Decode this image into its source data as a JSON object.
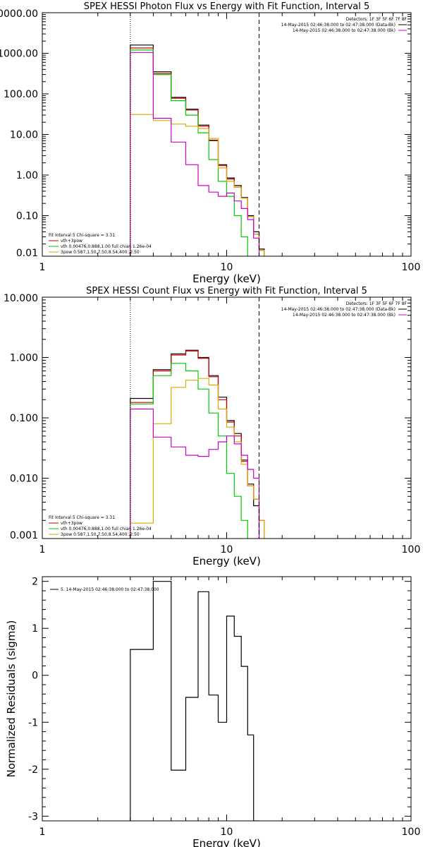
{
  "chart_data": [
    {
      "type": "line",
      "title": "SPEX HESSI Photon Flux vs Energy with Fit Function, Interval 5",
      "xlabel": "Energy (keV)",
      "ylabel": "",
      "xscale": "log",
      "yscale": "log",
      "xlim": [
        1,
        100
      ],
      "ylim": [
        0.01,
        10000
      ],
      "x_tick_labels": [
        "1",
        "10",
        "100"
      ],
      "y_tick_labels": [
        "0.01",
        "0.10",
        "1.00",
        "10.00",
        "100.00",
        "1000.00",
        "10000.00"
      ],
      "y_tick_values": [
        0.01,
        0.1,
        1,
        10,
        100,
        1000,
        10000
      ],
      "vlines": [
        {
          "x": 3.0,
          "style": "dotted"
        },
        {
          "x": 15.0,
          "style": "dashed"
        }
      ],
      "legend_right": {
        "header": "Detectors: 1F 3F 5F 6F 7F 8F",
        "entries": [
          {
            "text": "14-May-2015 02:46:38.000 to 02:47:38.000 (Data-Bk)",
            "color": "#000000"
          },
          {
            "text": "14-May-2015 02:46:38.000 to 02:47:38.000 (Bk)",
            "color": "#cc00cc"
          }
        ]
      },
      "legend_left": {
        "header": "Fit Interval 5   Chi-square = 3.31",
        "entries": [
          {
            "text": "vth+3pow",
            "color": "#cc0000"
          },
          {
            "text": "vth 0.00476,0.888,1.00  full chian 1.26e-04",
            "color": "#00cc00"
          },
          {
            "text": "3pow 0.587,1.50,7.50,8.54,400.,2.50",
            "color": "#ddaa00"
          }
        ]
      },
      "bin_edges": [
        3.0,
        4.0,
        5.0,
        6.0,
        7.0,
        8.0,
        9.0,
        10.0,
        11.0,
        12.0,
        13.0,
        14.0,
        15.0,
        16.0
      ],
      "series": [
        {
          "color": "#000000",
          "values": [
            1600,
            350,
            82,
            42,
            17,
            7.2,
            1.8,
            0.85,
            0.55,
            0.28,
            0.1,
            0.04,
            0.015
          ]
        },
        {
          "color": "#cc0000",
          "values": [
            1350,
            320,
            78,
            40,
            16,
            7.0,
            1.7,
            0.8,
            0.5,
            0.27,
            0.095,
            0.035,
            0.014
          ]
        },
        {
          "color": "#00cc00",
          "values": [
            1200,
            300,
            68,
            30,
            11,
            2.4,
            0.7,
            0.3,
            0.1,
            0.03,
            0.008,
            0.008,
            0.008
          ]
        },
        {
          "color": "#ddaa00",
          "values": [
            31,
            22,
            18,
            16,
            14,
            8.0,
            1.5,
            0.7,
            0.5,
            0.27,
            0.095,
            0.035,
            0.014
          ]
        },
        {
          "color": "#cc00cc",
          "values": [
            1050,
            25,
            6.5,
            1.8,
            0.55,
            0.38,
            0.3,
            0.36,
            0.23,
            0.15,
            0.08,
            0.028,
            0.008
          ]
        }
      ]
    },
    {
      "type": "line",
      "title": "SPEX HESSI Count Flux vs Energy with Fit Function, Interval 5",
      "xlabel": "Energy (keV)",
      "ylabel": "",
      "xscale": "log",
      "yscale": "log",
      "xlim": [
        1,
        100
      ],
      "ylim": [
        0.001,
        10
      ],
      "x_tick_labels": [
        "1",
        "10",
        "100"
      ],
      "y_tick_labels": [
        "0.001",
        "0.010",
        "0.100",
        "1.000",
        "10.000"
      ],
      "y_tick_values": [
        0.001,
        0.01,
        0.1,
        1,
        10
      ],
      "vlines": [
        {
          "x": 3.0,
          "style": "dotted"
        },
        {
          "x": 15.0,
          "style": "dashed"
        }
      ],
      "legend_right": {
        "header": "Detectors: 1F 3F 5F 6F 7F 8F",
        "entries": [
          {
            "text": "14-May-2015 02:46:38.000 to 02:47:38.000 (Data-Bk)",
            "color": "#000000"
          },
          {
            "text": "14-May-2015 02:46:38.000 to 02:47:38.000 (Bk)",
            "color": "#cc00cc"
          }
        ]
      },
      "legend_left": {
        "header": "Fit Interval 5   Chi-square = 3.31",
        "entries": [
          {
            "text": "vth+3pow",
            "color": "#cc0000"
          },
          {
            "text": "vth 0.00476,0.888,1.00  full chian 1.26e-04",
            "color": "#00cc00"
          },
          {
            "text": "3pow 0.587,1.50,7.50,8.54,400.,2.50",
            "color": "#ddaa00"
          }
        ]
      },
      "bin_edges": [
        3.0,
        4.0,
        5.0,
        6.0,
        7.0,
        8.0,
        9.0,
        10.0,
        11.0,
        12.0,
        13.0,
        14.0,
        15.0,
        16.0
      ],
      "series": [
        {
          "color": "#000000",
          "values": [
            0.21,
            0.63,
            1.15,
            1.32,
            1.0,
            0.5,
            0.22,
            0.09,
            0.055,
            0.02,
            0.008,
            0.0035,
            0.0009
          ]
        },
        {
          "color": "#cc0000",
          "values": [
            0.18,
            0.6,
            1.1,
            1.28,
            0.97,
            0.48,
            0.2,
            0.085,
            0.05,
            0.019,
            0.0075,
            0.0045,
            0.002
          ]
        },
        {
          "color": "#00cc00",
          "values": [
            0.17,
            0.5,
            0.8,
            0.6,
            0.3,
            0.12,
            0.05,
            0.012,
            0.005,
            0.002,
            0.0007,
            0.0007,
            0.0007
          ]
        },
        {
          "color": "#ddaa00",
          "values": [
            0.0018,
            0.08,
            0.32,
            0.42,
            0.45,
            0.35,
            0.14,
            0.07,
            0.04,
            0.017,
            0.0075,
            0.0045,
            0.002
          ]
        },
        {
          "color": "#cc00cc",
          "values": [
            0.14,
            0.048,
            0.033,
            0.024,
            0.023,
            0.03,
            0.04,
            0.05,
            0.037,
            0.024,
            0.014,
            0.01,
            0.0009
          ]
        }
      ]
    },
    {
      "type": "line",
      "title": "",
      "xlabel": "Energy (keV)",
      "ylabel": "Normalized Residuals (sigma)",
      "xscale": "log",
      "yscale": "linear",
      "xlim": [
        1,
        100
      ],
      "ylim": [
        -3.1,
        2.1
      ],
      "x_tick_labels": [
        "1",
        "10",
        "100"
      ],
      "y_tick_labels": [
        "-3",
        "-2",
        "-1",
        "0",
        "1",
        "2"
      ],
      "y_tick_values": [
        -3,
        -2,
        -1,
        0,
        1,
        2
      ],
      "legend_left": {
        "header": "",
        "entries": [
          {
            "text": "5. 14-May-2015 02:46:38.000 to 02:47:38.000",
            "color": "#000000"
          }
        ]
      },
      "bin_edges": [
        3.0,
        4.0,
        5.0,
        6.0,
        7.0,
        8.0,
        9.0,
        10.0,
        11.0,
        12.0,
        13.0,
        14.0,
        15.0
      ],
      "series": [
        {
          "color": "#000000",
          "values": [
            0.55,
            2.0,
            -2.02,
            -0.47,
            1.78,
            -0.42,
            -1.0,
            1.26,
            0.83,
            0.19,
            -1.27,
            -3.1
          ]
        }
      ]
    }
  ]
}
